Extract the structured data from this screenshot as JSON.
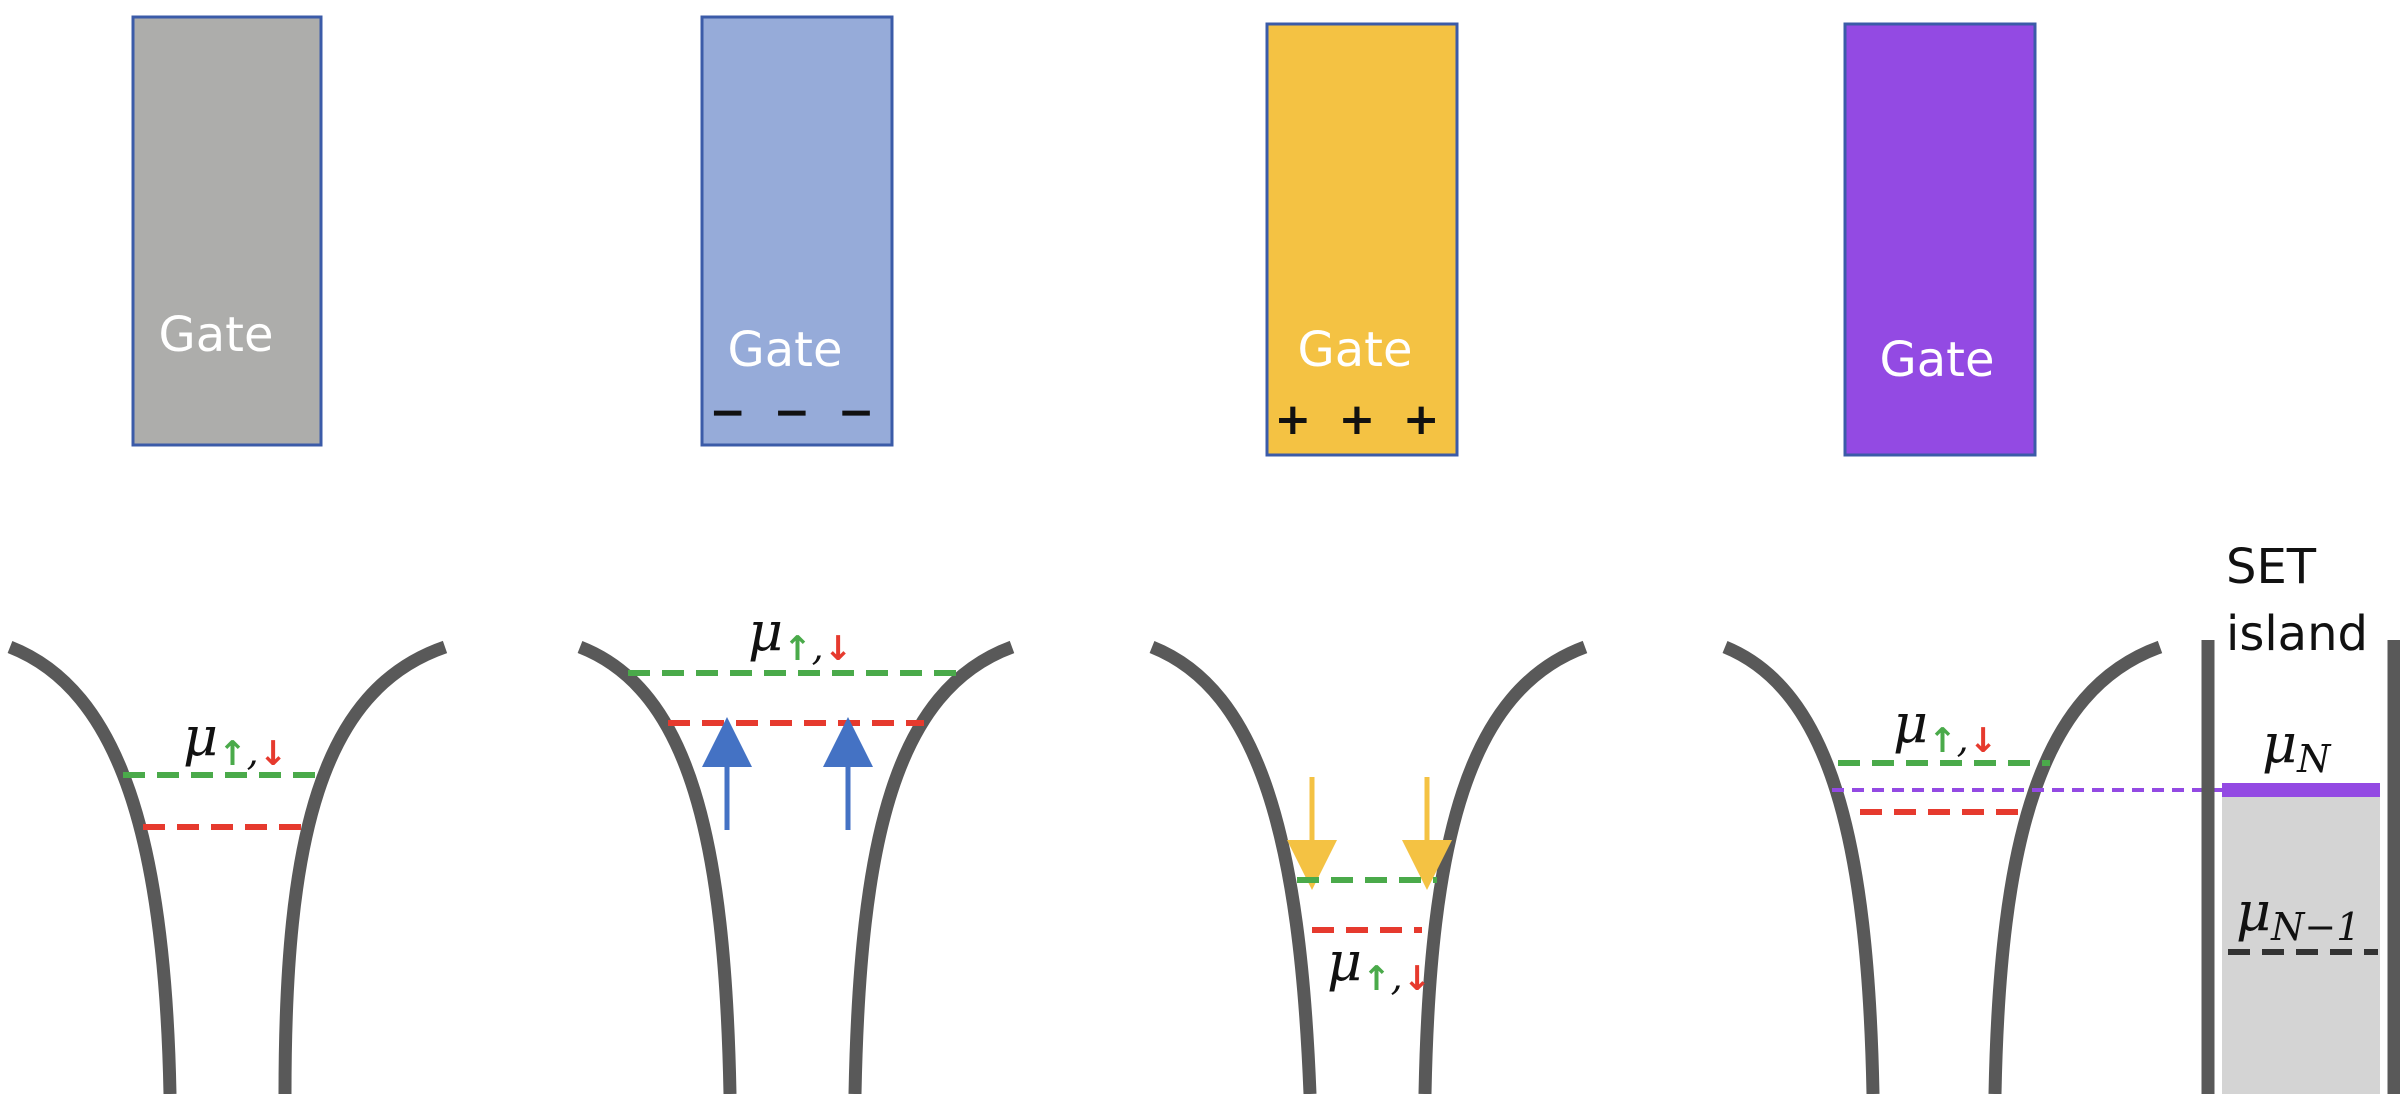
{
  "colors": {
    "gate_gray": "#adadab",
    "gate_blue": "#96abd9",
    "gate_yellow": "#f4c243",
    "gate_purple": "#934ae3",
    "gate_border": "#3b5ba8",
    "well": "#595959",
    "spin_up_level": "#4aaa4a",
    "spin_down_level": "#e63a2e",
    "push_arrow": "#4472c4",
    "pull_arrow": "#f4c243",
    "set_fill": "#d4d4d4",
    "mu_n_level": "#934ae3",
    "mu_n_minus_1_level": "#333333"
  },
  "panels": [
    {
      "gate_label": "Gate",
      "gate_charge": "",
      "mu_symbol": "μ",
      "spin_up_glyph": "↑",
      "separator": ",",
      "spin_down_glyph": "↓"
    },
    {
      "gate_label": "Gate",
      "gate_charge": "− − −",
      "mu_symbol": "μ",
      "spin_up_glyph": "↑",
      "separator": ",",
      "spin_down_glyph": "↓",
      "arrow_direction": "up"
    },
    {
      "gate_label": "Gate",
      "gate_charge": "+ + +",
      "mu_symbol": "μ",
      "spin_up_glyph": "↑",
      "separator": ",",
      "spin_down_glyph": "↓",
      "arrow_direction": "down"
    },
    {
      "gate_label": "Gate",
      "gate_charge": "",
      "mu_symbol": "μ",
      "spin_up_glyph": "↑",
      "separator": ",",
      "spin_down_glyph": "↓"
    }
  ],
  "set_island": {
    "title_line1": "SET",
    "title_line2": "island",
    "mu_n_symbol": "μ",
    "mu_n_subscript": "N",
    "mu_n_minus_1_symbol": "μ",
    "mu_n_minus_1_subscript": "N−1"
  }
}
